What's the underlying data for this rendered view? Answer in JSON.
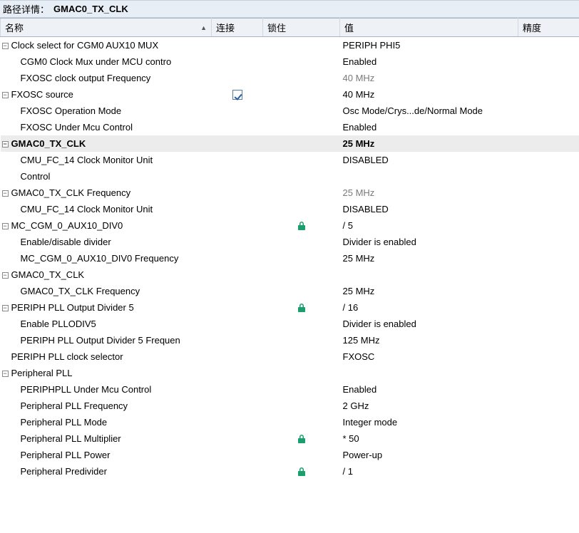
{
  "colors": {
    "header_bg": "#eef2f7",
    "path_bg": "#e8eef5",
    "border": "#a8b4c4",
    "highlight_bg": "#ececec",
    "lock_green": "#1a9e6b",
    "checkbox_border": "#5a7aa6",
    "grey_text": "#7a7a7a"
  },
  "pathBar": {
    "label": "路径详情：",
    "value": "GMAC0_TX_CLK"
  },
  "columns": {
    "name": "名称",
    "connection": "连接",
    "lock": "锁住",
    "value": "值",
    "precision": "精度"
  },
  "rows": [
    {
      "name": "Clock select for CGM0 AUX10 MUX",
      "collapser": "-",
      "indent": 0,
      "value": "PERIPH PHI5"
    },
    {
      "name": "CGM0 Clock Mux under MCU contro",
      "indent": 1,
      "value": "Enabled"
    },
    {
      "name": "FXOSC clock output Frequency",
      "indent": 1,
      "value": "40 MHz",
      "grey": true
    },
    {
      "name": "FXOSC source",
      "collapser": "-",
      "indent": 0,
      "connection": "checkbox-checked",
      "value": "40 MHz"
    },
    {
      "name": "FXOSC Operation Mode",
      "indent": 1,
      "value": "Osc Mode/Crys...de/Normal Mode"
    },
    {
      "name": "FXOSC Under Mcu Control",
      "indent": 1,
      "value": "Enabled"
    },
    {
      "name": "GMAC0_TX_CLK",
      "collapser": "-",
      "indent": 0,
      "value": "25 MHz",
      "highlight": true
    },
    {
      "name": "CMU_FC_14 Clock Monitor Unit Control",
      "indent": 1,
      "value": "DISABLED",
      "wrap": true
    },
    {
      "name": "GMAC0_TX_CLK Frequency",
      "collapser": "-",
      "indent": 0,
      "value": "25 MHz",
      "grey": true
    },
    {
      "name": "CMU_FC_14 Clock Monitor Unit",
      "indent": 1,
      "value": "DISABLED"
    },
    {
      "name": "MC_CGM_0_AUX10_DIV0",
      "collapser": "-",
      "indent": 0,
      "lock": true,
      "value": "/ 5"
    },
    {
      "name": "Enable/disable divider",
      "indent": 1,
      "value": "Divider is enabled"
    },
    {
      "name": "MC_CGM_0_AUX10_DIV0 Frequency",
      "indent": 1,
      "value": "25 MHz"
    },
    {
      "name": "GMAC0_TX_CLK",
      "collapser": "-",
      "indent": 0,
      "value": ""
    },
    {
      "name": "GMAC0_TX_CLK Frequency",
      "indent": 1,
      "value": "25 MHz"
    },
    {
      "name": "PERIPH PLL Output Divider 5",
      "collapser": "-",
      "indent": 0,
      "lock": true,
      "value": "/ 16"
    },
    {
      "name": "Enable PLLODIV5",
      "indent": 1,
      "value": "Divider is enabled"
    },
    {
      "name": "PERIPH PLL Output Divider 5 Frequen",
      "indent": 1,
      "value": "125 MHz"
    },
    {
      "name": "PERIPH PLL clock selector",
      "indent": "p",
      "value": "FXOSC"
    },
    {
      "name": "Peripheral PLL",
      "collapser": "-",
      "indent": 0,
      "value": ""
    },
    {
      "name": "PERIPHPLL Under Mcu Control",
      "indent": 1,
      "value": "Enabled"
    },
    {
      "name": "Peripheral PLL Frequency",
      "indent": 1,
      "value": "2 GHz"
    },
    {
      "name": "Peripheral PLL Mode",
      "indent": 1,
      "value": "Integer mode"
    },
    {
      "name": "Peripheral PLL Multiplier",
      "indent": 1,
      "lock": true,
      "value": "* 50"
    },
    {
      "name": "Peripheral PLL Power",
      "indent": 1,
      "value": "Power-up"
    },
    {
      "name": "Peripheral Predivider",
      "indent": 1,
      "lock": true,
      "value": "/ 1"
    }
  ]
}
